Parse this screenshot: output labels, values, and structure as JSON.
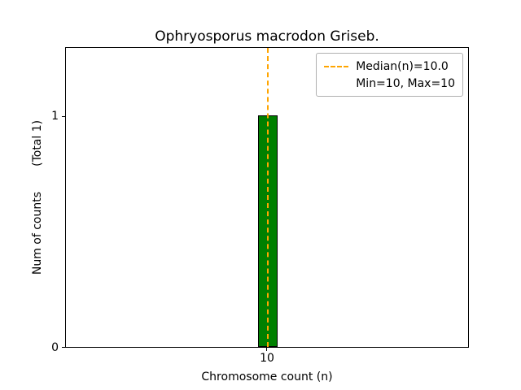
{
  "chart_data": {
    "type": "bar",
    "title": "Ophryosporus macrodon Griseb.",
    "xlabel": "Chromosome count (n)",
    "ylabel": "Num of counts       (Total 1)",
    "categories": [
      "10"
    ],
    "values": [
      1
    ],
    "total_counts": 1,
    "ylim": [
      0,
      1.3
    ],
    "yticks": [
      "0",
      "1"
    ],
    "xticks": [
      "10"
    ],
    "bar_color": "#008000",
    "bar_edge_color": "#000000",
    "grid": "off",
    "median_line": {
      "value": 10.0,
      "color": "#ffa500",
      "style": "dashed"
    },
    "legend": {
      "position": "upper right",
      "entries": [
        {
          "label": "Median(n)=10.0",
          "marker": "dashed-line",
          "color": "#ffa500"
        },
        {
          "label": "Min=10, Max=10",
          "marker": "none"
        }
      ]
    }
  }
}
